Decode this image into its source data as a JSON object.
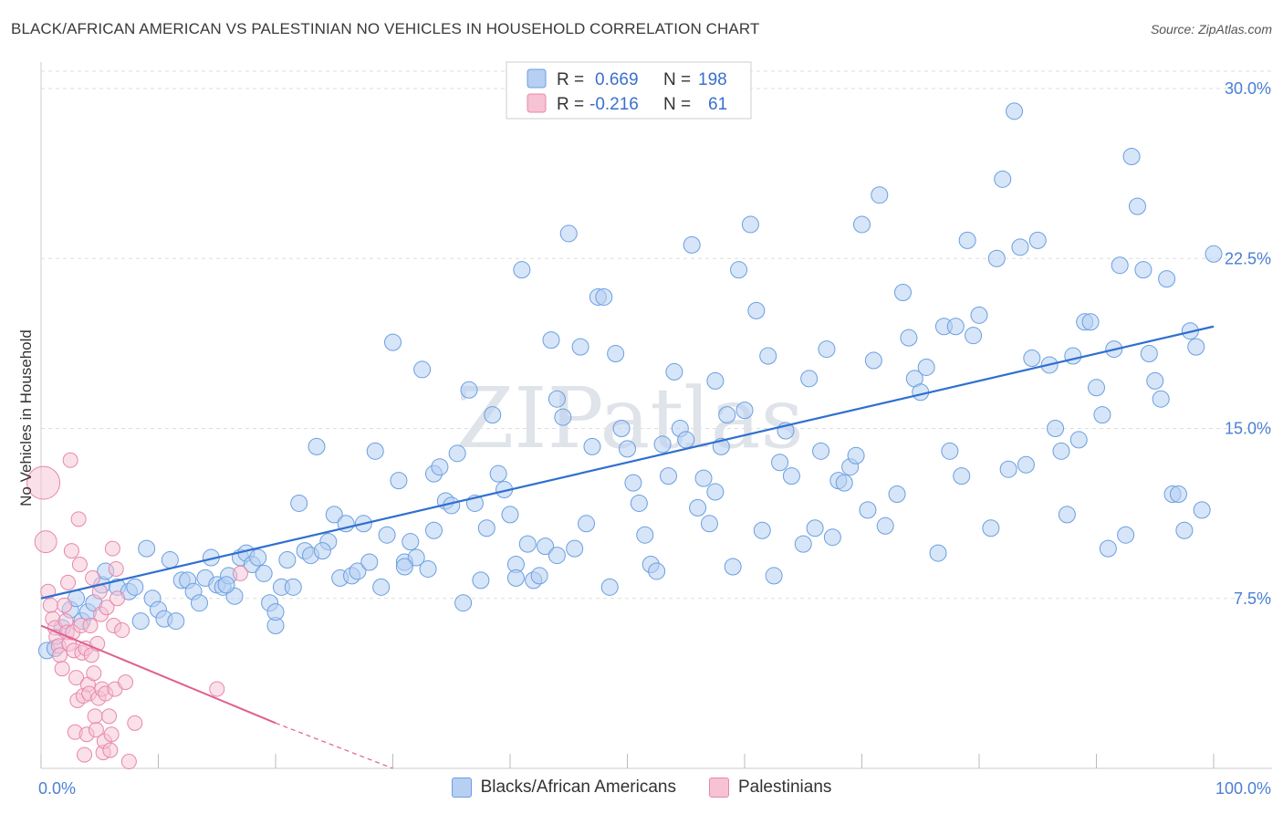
{
  "header": {
    "title": "BLACK/AFRICAN AMERICAN VS PALESTINIAN NO VEHICLES IN HOUSEHOLD CORRELATION CHART",
    "source": "Source: ZipAtlas.com"
  },
  "watermark": "ZIPatlas",
  "colors": {
    "blue": "#6a9fe0",
    "blue_fill": "#b7cff2",
    "blue_line": "#2f6fcf",
    "pink": "#e887ab",
    "pink_fill": "#f6c2d4",
    "pink_line": "#e0608f",
    "grid": "#dddddd",
    "tick_text": "#4a7fd4"
  },
  "legend_top": {
    "rows": [
      {
        "r_label": "R =",
        "r_value": "0.669",
        "n_label": "N =",
        "n_value": "198"
      },
      {
        "r_label": "R =",
        "r_value": "-0.216",
        "n_label": "N =",
        "n_value": "61"
      }
    ]
  },
  "legend_bottom": {
    "items": [
      {
        "label": "Blacks/African Americans"
      },
      {
        "label": "Palestinians"
      }
    ]
  },
  "chart_data": {
    "type": "scatter",
    "title": "BLACK/AFRICAN AMERICAN VS PALESTINIAN NO VEHICLES IN HOUSEHOLD CORRELATION CHART",
    "xlabel": "",
    "ylabel": "No Vehicles in Household",
    "xlim": [
      0,
      100
    ],
    "ylim": [
      0,
      30
    ],
    "x_tick_labels": [
      "0.0%",
      "100.0%"
    ],
    "y_ticks": [
      7.5,
      15.0,
      22.5,
      30.0
    ],
    "y_tick_labels": [
      "7.5%",
      "15.0%",
      "22.5%",
      "30.0%"
    ],
    "grid": true,
    "series": [
      {
        "name": "Blacks/African Americans",
        "R": 0.669,
        "N": 198,
        "trend": {
          "x": [
            0,
            100
          ],
          "y": [
            7.5,
            19.5
          ]
        },
        "points": [
          [
            0.5,
            5.2
          ],
          [
            1.2,
            5.3
          ],
          [
            1.8,
            6.2
          ],
          [
            2.5,
            7.0
          ],
          [
            3.0,
            7.5
          ],
          [
            3.5,
            6.5
          ],
          [
            4.0,
            6.9
          ],
          [
            4.5,
            7.3
          ],
          [
            5.2,
            8.1
          ],
          [
            5.5,
            8.7
          ],
          [
            6.5,
            8.0
          ],
          [
            7.5,
            7.8
          ],
          [
            8.5,
            6.5
          ],
          [
            9.0,
            9.7
          ],
          [
            9.5,
            7.5
          ],
          [
            10.0,
            7.0
          ],
          [
            10.5,
            6.6
          ],
          [
            11.0,
            9.2
          ],
          [
            11.5,
            6.5
          ],
          [
            12.0,
            8.3
          ],
          [
            12.5,
            8.3
          ],
          [
            13.0,
            7.8
          ],
          [
            13.5,
            7.3
          ],
          [
            14.0,
            8.4
          ],
          [
            14.5,
            9.3
          ],
          [
            15.0,
            8.1
          ],
          [
            15.5,
            8.0
          ],
          [
            16.0,
            8.5
          ],
          [
            16.5,
            7.6
          ],
          [
            17.0,
            9.3
          ],
          [
            17.5,
            9.5
          ],
          [
            18.0,
            9.0
          ],
          [
            18.5,
            9.3
          ],
          [
            19.0,
            8.6
          ],
          [
            19.5,
            7.3
          ],
          [
            20.0,
            6.3
          ],
          [
            20.5,
            8.0
          ],
          [
            21.0,
            9.2
          ],
          [
            21.5,
            8.0
          ],
          [
            22.0,
            11.7
          ],
          [
            22.5,
            9.6
          ],
          [
            23.0,
            9.4
          ],
          [
            23.5,
            14.2
          ],
          [
            24.5,
            10.0
          ],
          [
            25.0,
            11.2
          ],
          [
            25.5,
            8.4
          ],
          [
            26.0,
            10.8
          ],
          [
            26.5,
            8.5
          ],
          [
            27.0,
            8.7
          ],
          [
            27.5,
            10.8
          ],
          [
            28.0,
            9.1
          ],
          [
            28.5,
            14.0
          ],
          [
            29.0,
            8.0
          ],
          [
            29.5,
            10.3
          ],
          [
            30.0,
            18.8
          ],
          [
            30.5,
            12.7
          ],
          [
            31.0,
            9.1
          ],
          [
            31.5,
            10.0
          ],
          [
            32.0,
            9.3
          ],
          [
            32.5,
            17.6
          ],
          [
            33.0,
            8.8
          ],
          [
            33.5,
            13.0
          ],
          [
            34.0,
            13.3
          ],
          [
            34.5,
            11.8
          ],
          [
            35.0,
            11.6
          ],
          [
            35.5,
            13.9
          ],
          [
            36.0,
            7.3
          ],
          [
            36.5,
            16.7
          ],
          [
            37.0,
            11.7
          ],
          [
            37.5,
            8.3
          ],
          [
            38.0,
            10.6
          ],
          [
            38.5,
            15.6
          ],
          [
            39.0,
            13.0
          ],
          [
            39.5,
            12.3
          ],
          [
            40.0,
            11.2
          ],
          [
            40.5,
            9.0
          ],
          [
            41.0,
            22.0
          ],
          [
            41.5,
            9.9
          ],
          [
            42.0,
            8.3
          ],
          [
            42.5,
            8.5
          ],
          [
            43.0,
            9.8
          ],
          [
            43.5,
            18.9
          ],
          [
            44.0,
            16.3
          ],
          [
            44.5,
            15.5
          ],
          [
            45.0,
            23.6
          ],
          [
            45.5,
            9.7
          ],
          [
            46.0,
            18.6
          ],
          [
            46.5,
            10.8
          ],
          [
            47.0,
            14.2
          ],
          [
            47.5,
            20.8
          ],
          [
            48.0,
            20.8
          ],
          [
            48.5,
            8.0
          ],
          [
            49.0,
            18.3
          ],
          [
            49.5,
            15.0
          ],
          [
            50.0,
            14.1
          ],
          [
            50.5,
            12.6
          ],
          [
            51.0,
            11.7
          ],
          [
            51.5,
            10.3
          ],
          [
            52.0,
            9.0
          ],
          [
            52.5,
            8.7
          ],
          [
            53.0,
            14.3
          ],
          [
            53.5,
            12.9
          ],
          [
            54.0,
            17.5
          ],
          [
            54.5,
            15.0
          ],
          [
            55.0,
            14.5
          ],
          [
            55.5,
            23.1
          ],
          [
            56.0,
            11.5
          ],
          [
            56.5,
            12.8
          ],
          [
            57.0,
            10.8
          ],
          [
            57.5,
            17.1
          ],
          [
            58.0,
            14.2
          ],
          [
            58.5,
            15.6
          ],
          [
            59.0,
            8.9
          ],
          [
            59.5,
            22.0
          ],
          [
            60.0,
            15.8
          ],
          [
            60.5,
            24.0
          ],
          [
            61.0,
            20.2
          ],
          [
            61.5,
            10.5
          ],
          [
            62.0,
            18.2
          ],
          [
            62.5,
            8.5
          ],
          [
            63.0,
            13.5
          ],
          [
            63.5,
            14.9
          ],
          [
            64.0,
            12.9
          ],
          [
            65.0,
            9.9
          ],
          [
            65.5,
            17.2
          ],
          [
            66.0,
            10.6
          ],
          [
            66.5,
            14.0
          ],
          [
            67.0,
            18.5
          ],
          [
            67.5,
            10.2
          ],
          [
            68.0,
            12.7
          ],
          [
            68.5,
            12.6
          ],
          [
            69.0,
            13.3
          ],
          [
            69.5,
            13.8
          ],
          [
            70.0,
            24.0
          ],
          [
            70.5,
            11.4
          ],
          [
            71.0,
            18.0
          ],
          [
            71.5,
            25.3
          ],
          [
            72.0,
            10.7
          ],
          [
            73.0,
            12.1
          ],
          [
            73.5,
            21.0
          ],
          [
            74.0,
            19.0
          ],
          [
            74.5,
            17.2
          ],
          [
            75.0,
            16.6
          ],
          [
            75.5,
            17.7
          ],
          [
            76.5,
            9.5
          ],
          [
            77.0,
            19.5
          ],
          [
            77.5,
            14.0
          ],
          [
            78.0,
            19.5
          ],
          [
            78.5,
            12.9
          ],
          [
            79.0,
            23.3
          ],
          [
            79.5,
            19.1
          ],
          [
            80.0,
            20.0
          ],
          [
            81.0,
            10.6
          ],
          [
            81.5,
            22.5
          ],
          [
            82.0,
            26.0
          ],
          [
            82.5,
            13.2
          ],
          [
            83.0,
            29.0
          ],
          [
            83.5,
            23.0
          ],
          [
            84.0,
            13.4
          ],
          [
            84.5,
            18.1
          ],
          [
            85.0,
            23.3
          ],
          [
            86.0,
            17.8
          ],
          [
            86.5,
            15.0
          ],
          [
            87.0,
            14.0
          ],
          [
            87.5,
            11.2
          ],
          [
            88.0,
            18.2
          ],
          [
            88.5,
            14.5
          ],
          [
            89.0,
            19.7
          ],
          [
            89.5,
            19.7
          ],
          [
            90.0,
            16.8
          ],
          [
            90.5,
            15.6
          ],
          [
            91.0,
            9.7
          ],
          [
            91.5,
            18.5
          ],
          [
            92.0,
            22.2
          ],
          [
            92.5,
            10.3
          ],
          [
            93.0,
            27.0
          ],
          [
            93.5,
            24.8
          ],
          [
            94.0,
            22.0
          ],
          [
            94.5,
            18.3
          ],
          [
            95.0,
            17.1
          ],
          [
            95.5,
            16.3
          ],
          [
            96.0,
            21.6
          ],
          [
            96.5,
            12.1
          ],
          [
            97.0,
            12.1
          ],
          [
            97.5,
            10.5
          ],
          [
            98.0,
            19.3
          ],
          [
            98.5,
            18.6
          ],
          [
            99.0,
            11.4
          ],
          [
            100.0,
            22.7
          ],
          [
            40.5,
            8.4
          ],
          [
            15.8,
            8.1
          ],
          [
            24.0,
            9.6
          ],
          [
            31.0,
            8.9
          ],
          [
            8.0,
            8.0
          ],
          [
            33.5,
            10.5
          ],
          [
            20.0,
            6.9
          ],
          [
            44.0,
            9.4
          ],
          [
            57.5,
            12.2
          ]
        ]
      },
      {
        "name": "Palestinians",
        "R": -0.216,
        "N": 61,
        "trend": {
          "x": [
            0,
            20
          ],
          "y": [
            6.3,
            2.0
          ]
        },
        "trend_dashed": {
          "x": [
            20,
            30
          ],
          "y": [
            2.0,
            0.0
          ]
        },
        "points": [
          [
            0.2,
            12.6
          ],
          [
            0.4,
            10.0
          ],
          [
            0.6,
            7.8
          ],
          [
            0.8,
            7.2
          ],
          [
            1.0,
            6.6
          ],
          [
            1.2,
            6.2
          ],
          [
            1.3,
            5.8
          ],
          [
            1.5,
            5.4
          ],
          [
            1.6,
            5.0
          ],
          [
            1.8,
            4.4
          ],
          [
            2.0,
            7.2
          ],
          [
            2.1,
            6.5
          ],
          [
            2.2,
            6.0
          ],
          [
            2.3,
            8.2
          ],
          [
            2.4,
            5.5
          ],
          [
            2.5,
            13.6
          ],
          [
            2.6,
            9.6
          ],
          [
            2.7,
            6.0
          ],
          [
            2.8,
            5.2
          ],
          [
            2.9,
            1.6
          ],
          [
            3.0,
            4.0
          ],
          [
            3.1,
            3.0
          ],
          [
            3.2,
            11.0
          ],
          [
            3.3,
            9.0
          ],
          [
            3.4,
            6.3
          ],
          [
            3.5,
            5.1
          ],
          [
            3.6,
            3.2
          ],
          [
            3.7,
            0.6
          ],
          [
            3.8,
            5.3
          ],
          [
            3.9,
            1.5
          ],
          [
            4.0,
            3.7
          ],
          [
            4.1,
            3.3
          ],
          [
            4.2,
            6.3
          ],
          [
            4.3,
            5.0
          ],
          [
            4.4,
            8.4
          ],
          [
            4.5,
            4.2
          ],
          [
            4.6,
            2.3
          ],
          [
            4.7,
            1.7
          ],
          [
            4.8,
            5.5
          ],
          [
            4.9,
            3.1
          ],
          [
            5.0,
            7.8
          ],
          [
            5.1,
            6.8
          ],
          [
            5.2,
            3.5
          ],
          [
            5.3,
            0.7
          ],
          [
            5.4,
            1.2
          ],
          [
            5.5,
            3.3
          ],
          [
            5.6,
            7.1
          ],
          [
            5.8,
            2.3
          ],
          [
            5.9,
            0.8
          ],
          [
            6.0,
            1.5
          ],
          [
            6.1,
            9.7
          ],
          [
            6.2,
            6.3
          ],
          [
            6.3,
            3.5
          ],
          [
            6.4,
            8.8
          ],
          [
            6.5,
            7.5
          ],
          [
            6.9,
            6.1
          ],
          [
            7.2,
            3.8
          ],
          [
            7.5,
            0.3
          ],
          [
            8.0,
            2.0
          ],
          [
            15.0,
            3.5
          ],
          [
            17.0,
            8.6
          ]
        ]
      }
    ]
  }
}
